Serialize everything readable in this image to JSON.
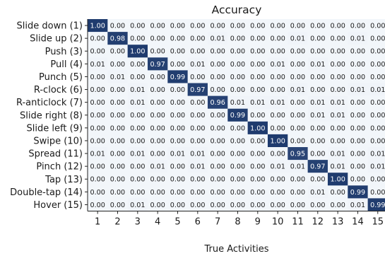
{
  "chart_data": {
    "type": "heatmap",
    "title": "Accuracy",
    "xlabel": "True Activities",
    "ylabel": "",
    "x_categories": [
      "1",
      "2",
      "3",
      "4",
      "5",
      "6",
      "7",
      "8",
      "9",
      "10",
      "11",
      "12",
      "13",
      "14",
      "15"
    ],
    "y_categories": [
      "Slide down (1)",
      "Slide up (2)",
      "Push (3)",
      "Pull (4)",
      "Punch (5)",
      "R-clock (6)",
      "R-anticlock (7)",
      "Slide right (8)",
      "Slide left (9)",
      "Swipe (10)",
      "Spread (11)",
      "Pinch (12)",
      "Tap (13)",
      "Double-tap (14)",
      "Hover (15)"
    ],
    "values": [
      [
        "1.00",
        "0.00",
        "0.00",
        "0.00",
        "0.00",
        "0.00",
        "0.00",
        "0.00",
        "0.00",
        "0.00",
        "0.00",
        "0.00",
        "0.00",
        "0.00",
        "0.00"
      ],
      [
        "0.00",
        "0.98",
        "0.00",
        "0.00",
        "0.00",
        "0.00",
        "0.01",
        "0.00",
        "0.00",
        "0.00",
        "0.01",
        "0.00",
        "0.00",
        "0.01",
        "0.00"
      ],
      [
        "0.00",
        "0.00",
        "1.00",
        "0.00",
        "0.00",
        "0.00",
        "0.00",
        "0.00",
        "0.00",
        "0.00",
        "0.00",
        "0.00",
        "0.00",
        "0.00",
        "0.00"
      ],
      [
        "0.01",
        "0.00",
        "0.00",
        "0.97",
        "0.00",
        "0.01",
        "0.00",
        "0.00",
        "0.00",
        "0.01",
        "0.00",
        "0.01",
        "0.00",
        "0.00",
        "0.00"
      ],
      [
        "0.00",
        "0.01",
        "0.00",
        "0.00",
        "0.99",
        "0.00",
        "0.00",
        "0.00",
        "0.00",
        "0.00",
        "0.00",
        "0.00",
        "0.00",
        "0.00",
        "0.00"
      ],
      [
        "0.00",
        "0.00",
        "0.01",
        "0.00",
        "0.00",
        "0.97",
        "0.00",
        "0.00",
        "0.00",
        "0.00",
        "0.01",
        "0.00",
        "0.00",
        "0.01",
        "0.01"
      ],
      [
        "0.00",
        "0.00",
        "0.01",
        "0.00",
        "0.00",
        "0.00",
        "0.96",
        "0.01",
        "0.01",
        "0.01",
        "0.00",
        "0.01",
        "0.01",
        "0.00",
        "0.00"
      ],
      [
        "0.00",
        "0.00",
        "0.00",
        "0.00",
        "0.00",
        "0.00",
        "0.00",
        "0.99",
        "0.00",
        "0.00",
        "0.00",
        "0.01",
        "0.01",
        "0.00",
        "0.00"
      ],
      [
        "0.00",
        "0.00",
        "0.00",
        "0.00",
        "0.00",
        "0.00",
        "0.00",
        "0.00",
        "1.00",
        "0.00",
        "0.00",
        "0.00",
        "0.00",
        "0.00",
        "0.00"
      ],
      [
        "0.00",
        "0.00",
        "0.00",
        "0.00",
        "0.00",
        "0.00",
        "0.00",
        "0.00",
        "0.00",
        "1.00",
        "0.00",
        "0.00",
        "0.00",
        "0.00",
        "0.00"
      ],
      [
        "0.01",
        "0.00",
        "0.01",
        "0.00",
        "0.01",
        "0.01",
        "0.00",
        "0.00",
        "0.00",
        "0.00",
        "0.95",
        "0.00",
        "0.01",
        "0.00",
        "0.01"
      ],
      [
        "0.00",
        "0.00",
        "0.00",
        "0.01",
        "0.00",
        "0.01",
        "0.00",
        "0.00",
        "0.00",
        "0.01",
        "0.01",
        "0.97",
        "0.01",
        "0.00",
        "0.01"
      ],
      [
        "0.00",
        "0.00",
        "0.00",
        "0.00",
        "0.00",
        "0.00",
        "0.00",
        "0.00",
        "0.00",
        "0.00",
        "0.00",
        "0.00",
        "1.00",
        "0.00",
        "0.00"
      ],
      [
        "0.00",
        "0.00",
        "0.00",
        "0.00",
        "0.00",
        "0.00",
        "0.00",
        "0.00",
        "0.00",
        "0.00",
        "0.00",
        "0.01",
        "0.00",
        "0.99",
        "0.00"
      ],
      [
        "0.00",
        "0.00",
        "0.01",
        "0.00",
        "0.00",
        "0.00",
        "0.00",
        "0.00",
        "0.00",
        "0.00",
        "0.00",
        "0.00",
        "0.00",
        "0.01",
        "0.99"
      ]
    ],
    "colors": {
      "low": "#f2f6fa",
      "high": "#1f3b6e",
      "text_dark": "#1a1a1a",
      "text_light": "#ffffff",
      "axis": "#222222"
    }
  }
}
